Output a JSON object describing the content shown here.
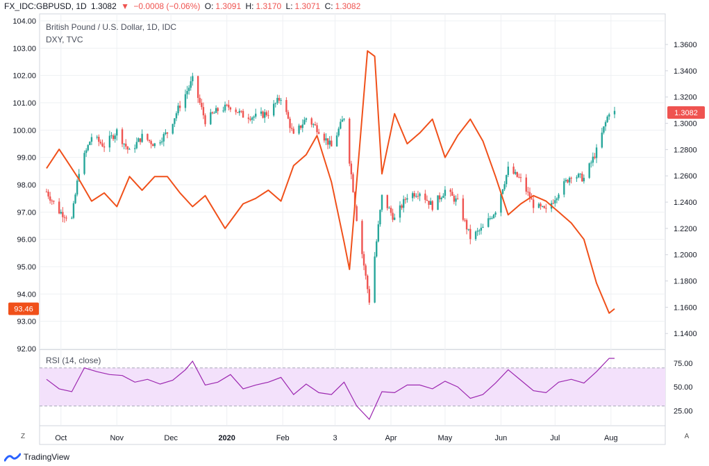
{
  "header": {
    "symbol": "FX_IDC:GBPUSD, 1D",
    "last": "1.3082",
    "change_icon": "triangle-down-icon",
    "change": "−0.0008 (−0.06%)",
    "o_label": "O:",
    "o_value": "1.3091",
    "h_label": "H:",
    "h_value": "1.3170",
    "l_label": "L:",
    "l_value": "1.3071",
    "c_label": "C:",
    "c_value": "1.3082"
  },
  "legend": {
    "main_title": "British Pound / U.S. Dollar, 1D, IDC",
    "overlay_title": "DXY, TVC",
    "rsi_title": "RSI (14, close)"
  },
  "colors": {
    "up": "#26a69a",
    "down": "#ef5350",
    "dxy_line": "#f0501a",
    "rsi_line": "#9c27b0",
    "rsi_band": "#f3e1fb",
    "grid": "#eef0f3"
  },
  "footer": {
    "brand": "TradingView",
    "brand_icon": "tradingview-logo-icon",
    "left_button": "Z",
    "right_button": "A"
  },
  "chart_data": [
    {
      "type": "line",
      "title": "British Pound / U.S. Dollar, 1D, IDC",
      "subtitle": "DXY, TVC",
      "x_ticks": [
        "Oct",
        "Nov",
        "Dec",
        "2020",
        "Feb",
        "3",
        "Apr",
        "May",
        "Jun",
        "Jul",
        "Aug"
      ],
      "left_axis": {
        "ticks": [
          "104.00",
          "103.00",
          "102.00",
          "101.00",
          "100.00",
          "99.00",
          "98.00",
          "97.00",
          "96.00",
          "95.00",
          "94.00",
          "93.00",
          "92.00"
        ],
        "ylim": [
          92,
          104
        ],
        "last_label": "93.46"
      },
      "right_axis": {
        "ticks": [
          "1.3600",
          "1.3400",
          "1.3200",
          "1.3000",
          "1.2800",
          "1.2600",
          "1.2400",
          "1.2200",
          "1.2000",
          "1.1800",
          "1.1600",
          "1.1400"
        ],
        "ylim": [
          1.1285,
          1.378
        ],
        "last_label": "1.3082"
      },
      "grid": true,
      "series": [
        {
          "name": "FX_IDC:GBPUSD",
          "style": "candles",
          "axis": "right",
          "close_key": [
            [
              "2019-09-23",
              1.248
            ],
            [
              "2019-09-30",
              1.233
            ],
            [
              "2019-10-07",
              1.227
            ],
            [
              "2019-10-11",
              1.264
            ],
            [
              "2019-10-18",
              1.29
            ],
            [
              "2019-10-25",
              1.283
            ],
            [
              "2019-11-01",
              1.294
            ],
            [
              "2019-11-08",
              1.278
            ],
            [
              "2019-11-15",
              1.29
            ],
            [
              "2019-11-22",
              1.284
            ],
            [
              "2019-11-29",
              1.293
            ],
            [
              "2019-12-06",
              1.314
            ],
            [
              "2019-12-13",
              1.333
            ],
            [
              "2019-12-20",
              1.302
            ],
            [
              "2019-12-27",
              1.31
            ],
            [
              "2020-01-03",
              1.313
            ],
            [
              "2020-01-10",
              1.306
            ],
            [
              "2020-01-17",
              1.305
            ],
            [
              "2020-01-24",
              1.308
            ],
            [
              "2020-01-31",
              1.32
            ],
            [
              "2020-02-07",
              1.29
            ],
            [
              "2020-02-14",
              1.304
            ],
            [
              "2020-02-21",
              1.295
            ],
            [
              "2020-02-28",
              1.282
            ],
            [
              "2020-03-06",
              1.305
            ],
            [
              "2020-03-13",
              1.228
            ],
            [
              "2020-03-20",
              1.165
            ],
            [
              "2020-03-27",
              1.244
            ],
            [
              "2020-04-03",
              1.227
            ],
            [
              "2020-04-10",
              1.245
            ],
            [
              "2020-04-17",
              1.248
            ],
            [
              "2020-04-24",
              1.237
            ],
            [
              "2020-05-01",
              1.249
            ],
            [
              "2020-05-08",
              1.24
            ],
            [
              "2020-05-15",
              1.213
            ],
            [
              "2020-05-22",
              1.22
            ],
            [
              "2020-05-29",
              1.234
            ],
            [
              "2020-06-05",
              1.265
            ],
            [
              "2020-06-12",
              1.257
            ],
            [
              "2020-06-19",
              1.238
            ],
            [
              "2020-06-26",
              1.233
            ],
            [
              "2020-07-03",
              1.248
            ],
            [
              "2020-07-10",
              1.261
            ],
            [
              "2020-07-17",
              1.258
            ],
            [
              "2020-07-24",
              1.279
            ],
            [
              "2020-07-31",
              1.309
            ],
            [
              "2020-08-03",
              1.3082
            ]
          ]
        },
        {
          "name": "DXY, TVC",
          "style": "line",
          "axis": "left",
          "points": [
            [
              "2019-09-23",
              98.6
            ],
            [
              "2019-09-30",
              99.3
            ],
            [
              "2019-10-04",
              98.9
            ],
            [
              "2019-10-11",
              98.2
            ],
            [
              "2019-10-18",
              97.4
            ],
            [
              "2019-10-25",
              97.7
            ],
            [
              "2019-11-01",
              97.2
            ],
            [
              "2019-11-08",
              98.3
            ],
            [
              "2019-11-15",
              97.8
            ],
            [
              "2019-11-22",
              98.3
            ],
            [
              "2019-11-29",
              98.3
            ],
            [
              "2019-12-06",
              97.7
            ],
            [
              "2019-12-13",
              97.2
            ],
            [
              "2019-12-20",
              97.6
            ],
            [
              "2019-12-31",
              96.4
            ],
            [
              "2020-01-10",
              97.3
            ],
            [
              "2020-01-17",
              97.5
            ],
            [
              "2020-01-24",
              97.8
            ],
            [
              "2020-01-31",
              97.4
            ],
            [
              "2020-02-07",
              98.7
            ],
            [
              "2020-02-14",
              99.1
            ],
            [
              "2020-02-20",
              99.8
            ],
            [
              "2020-02-28",
              98.1
            ],
            [
              "2020-03-06",
              95.9
            ],
            [
              "2020-03-09",
              94.9
            ],
            [
              "2020-03-12",
              97.3
            ],
            [
              "2020-03-19",
              102.9
            ],
            [
              "2020-03-23",
              102.7
            ],
            [
              "2020-03-27",
              98.4
            ],
            [
              "2020-04-03",
              100.6
            ],
            [
              "2020-04-10",
              99.5
            ],
            [
              "2020-04-17",
              99.9
            ],
            [
              "2020-04-24",
              100.4
            ],
            [
              "2020-05-01",
              99.0
            ],
            [
              "2020-05-08",
              99.8
            ],
            [
              "2020-05-15",
              100.4
            ],
            [
              "2020-05-22",
              99.6
            ],
            [
              "2020-05-29",
              98.3
            ],
            [
              "2020-06-05",
              96.9
            ],
            [
              "2020-06-12",
              97.3
            ],
            [
              "2020-06-19",
              97.6
            ],
            [
              "2020-06-26",
              97.4
            ],
            [
              "2020-07-03",
              97.0
            ],
            [
              "2020-07-10",
              96.6
            ],
            [
              "2020-07-17",
              96.0
            ],
            [
              "2020-07-24",
              94.4
            ],
            [
              "2020-07-31",
              93.3
            ],
            [
              "2020-08-03",
              93.46
            ]
          ]
        }
      ]
    },
    {
      "type": "line",
      "title": "RSI (14, close)",
      "axis_ticks": [
        "75.00",
        "50.00",
        "25.00"
      ],
      "ylim": [
        10,
        88
      ],
      "band": [
        30,
        70
      ],
      "series": [
        {
          "name": "RSI (14, close)",
          "values": [
            [
              "2019-09-23",
              58
            ],
            [
              "2019-09-30",
              48
            ],
            [
              "2019-10-07",
              45
            ],
            [
              "2019-10-14",
              70
            ],
            [
              "2019-10-21",
              66
            ],
            [
              "2019-10-28",
              63
            ],
            [
              "2019-11-04",
              62
            ],
            [
              "2019-11-11",
              55
            ],
            [
              "2019-11-18",
              58
            ],
            [
              "2019-11-25",
              53
            ],
            [
              "2019-12-02",
              57
            ],
            [
              "2019-12-09",
              68
            ],
            [
              "2019-12-13",
              77
            ],
            [
              "2019-12-20",
              52
            ],
            [
              "2019-12-27",
              55
            ],
            [
              "2020-01-03",
              63
            ],
            [
              "2020-01-10",
              48
            ],
            [
              "2020-01-17",
              52
            ],
            [
              "2020-01-24",
              55
            ],
            [
              "2020-01-31",
              60
            ],
            [
              "2020-02-07",
              42
            ],
            [
              "2020-02-14",
              53
            ],
            [
              "2020-02-21",
              44
            ],
            [
              "2020-02-28",
              42
            ],
            [
              "2020-03-06",
              55
            ],
            [
              "2020-03-13",
              30
            ],
            [
              "2020-03-20",
              16
            ],
            [
              "2020-03-27",
              45
            ],
            [
              "2020-04-03",
              44
            ],
            [
              "2020-04-10",
              52
            ],
            [
              "2020-04-17",
              52
            ],
            [
              "2020-04-24",
              48
            ],
            [
              "2020-05-01",
              56
            ],
            [
              "2020-05-08",
              50
            ],
            [
              "2020-05-15",
              38
            ],
            [
              "2020-05-22",
              42
            ],
            [
              "2020-05-29",
              54
            ],
            [
              "2020-06-05",
              68
            ],
            [
              "2020-06-12",
              57
            ],
            [
              "2020-06-19",
              46
            ],
            [
              "2020-06-26",
              44
            ],
            [
              "2020-07-03",
              55
            ],
            [
              "2020-07-10",
              58
            ],
            [
              "2020-07-17",
              54
            ],
            [
              "2020-07-24",
              66
            ],
            [
              "2020-07-31",
              80
            ],
            [
              "2020-08-03",
              80
            ]
          ]
        }
      ]
    }
  ]
}
